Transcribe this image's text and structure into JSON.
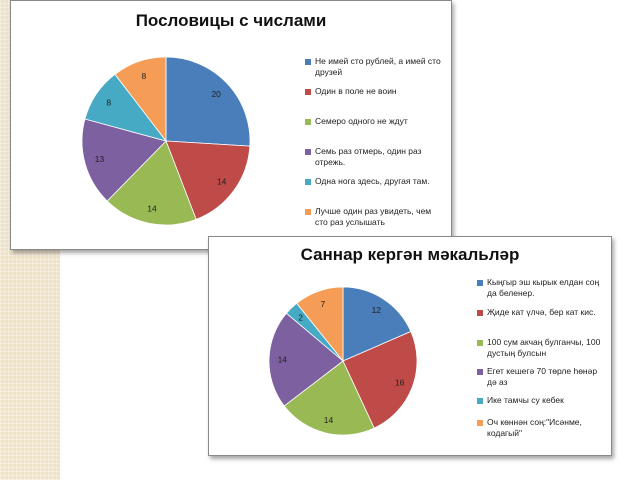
{
  "chart_data": [
    {
      "type": "pie",
      "title": "Пословицы с числами",
      "categories": [
        "Не имей сто рублей, а имей сто друзей",
        "Один в поле не воин",
        "Семеро одного не ждут",
        "Семь раз отмерь, один раз отрежь.",
        "Одна нога здесь, другая там.",
        "Лучше один раз увидеть, чем сто раз услышать"
      ],
      "values": [
        20,
        14,
        14,
        13,
        8,
        8
      ],
      "colors": [
        "#4a7ebb",
        "#be4b48",
        "#98b954",
        "#7d60a0",
        "#46aac5",
        "#f59d56"
      ],
      "legend": "right"
    },
    {
      "type": "pie",
      "title": "Саннар кергән мәкальләр",
      "categories": [
        "Кыңгыр эш кырык елдан соң да беленер.",
        "Җиде кат үлчә, бер кат кис.",
        "100 сум акчаң булганчы, 100 дустың булсын",
        "Егет кешегә 70 төрле һөнәр дә аз",
        "Ике тамчы су кебек",
        "Оч көннән соң:\"Исәнме, кодагый\""
      ],
      "values": [
        12,
        16,
        14,
        14,
        2,
        7
      ],
      "colors": [
        "#4a7ebb",
        "#be4b48",
        "#98b954",
        "#7d60a0",
        "#46aac5",
        "#f59d56"
      ],
      "legend": "right"
    }
  ]
}
